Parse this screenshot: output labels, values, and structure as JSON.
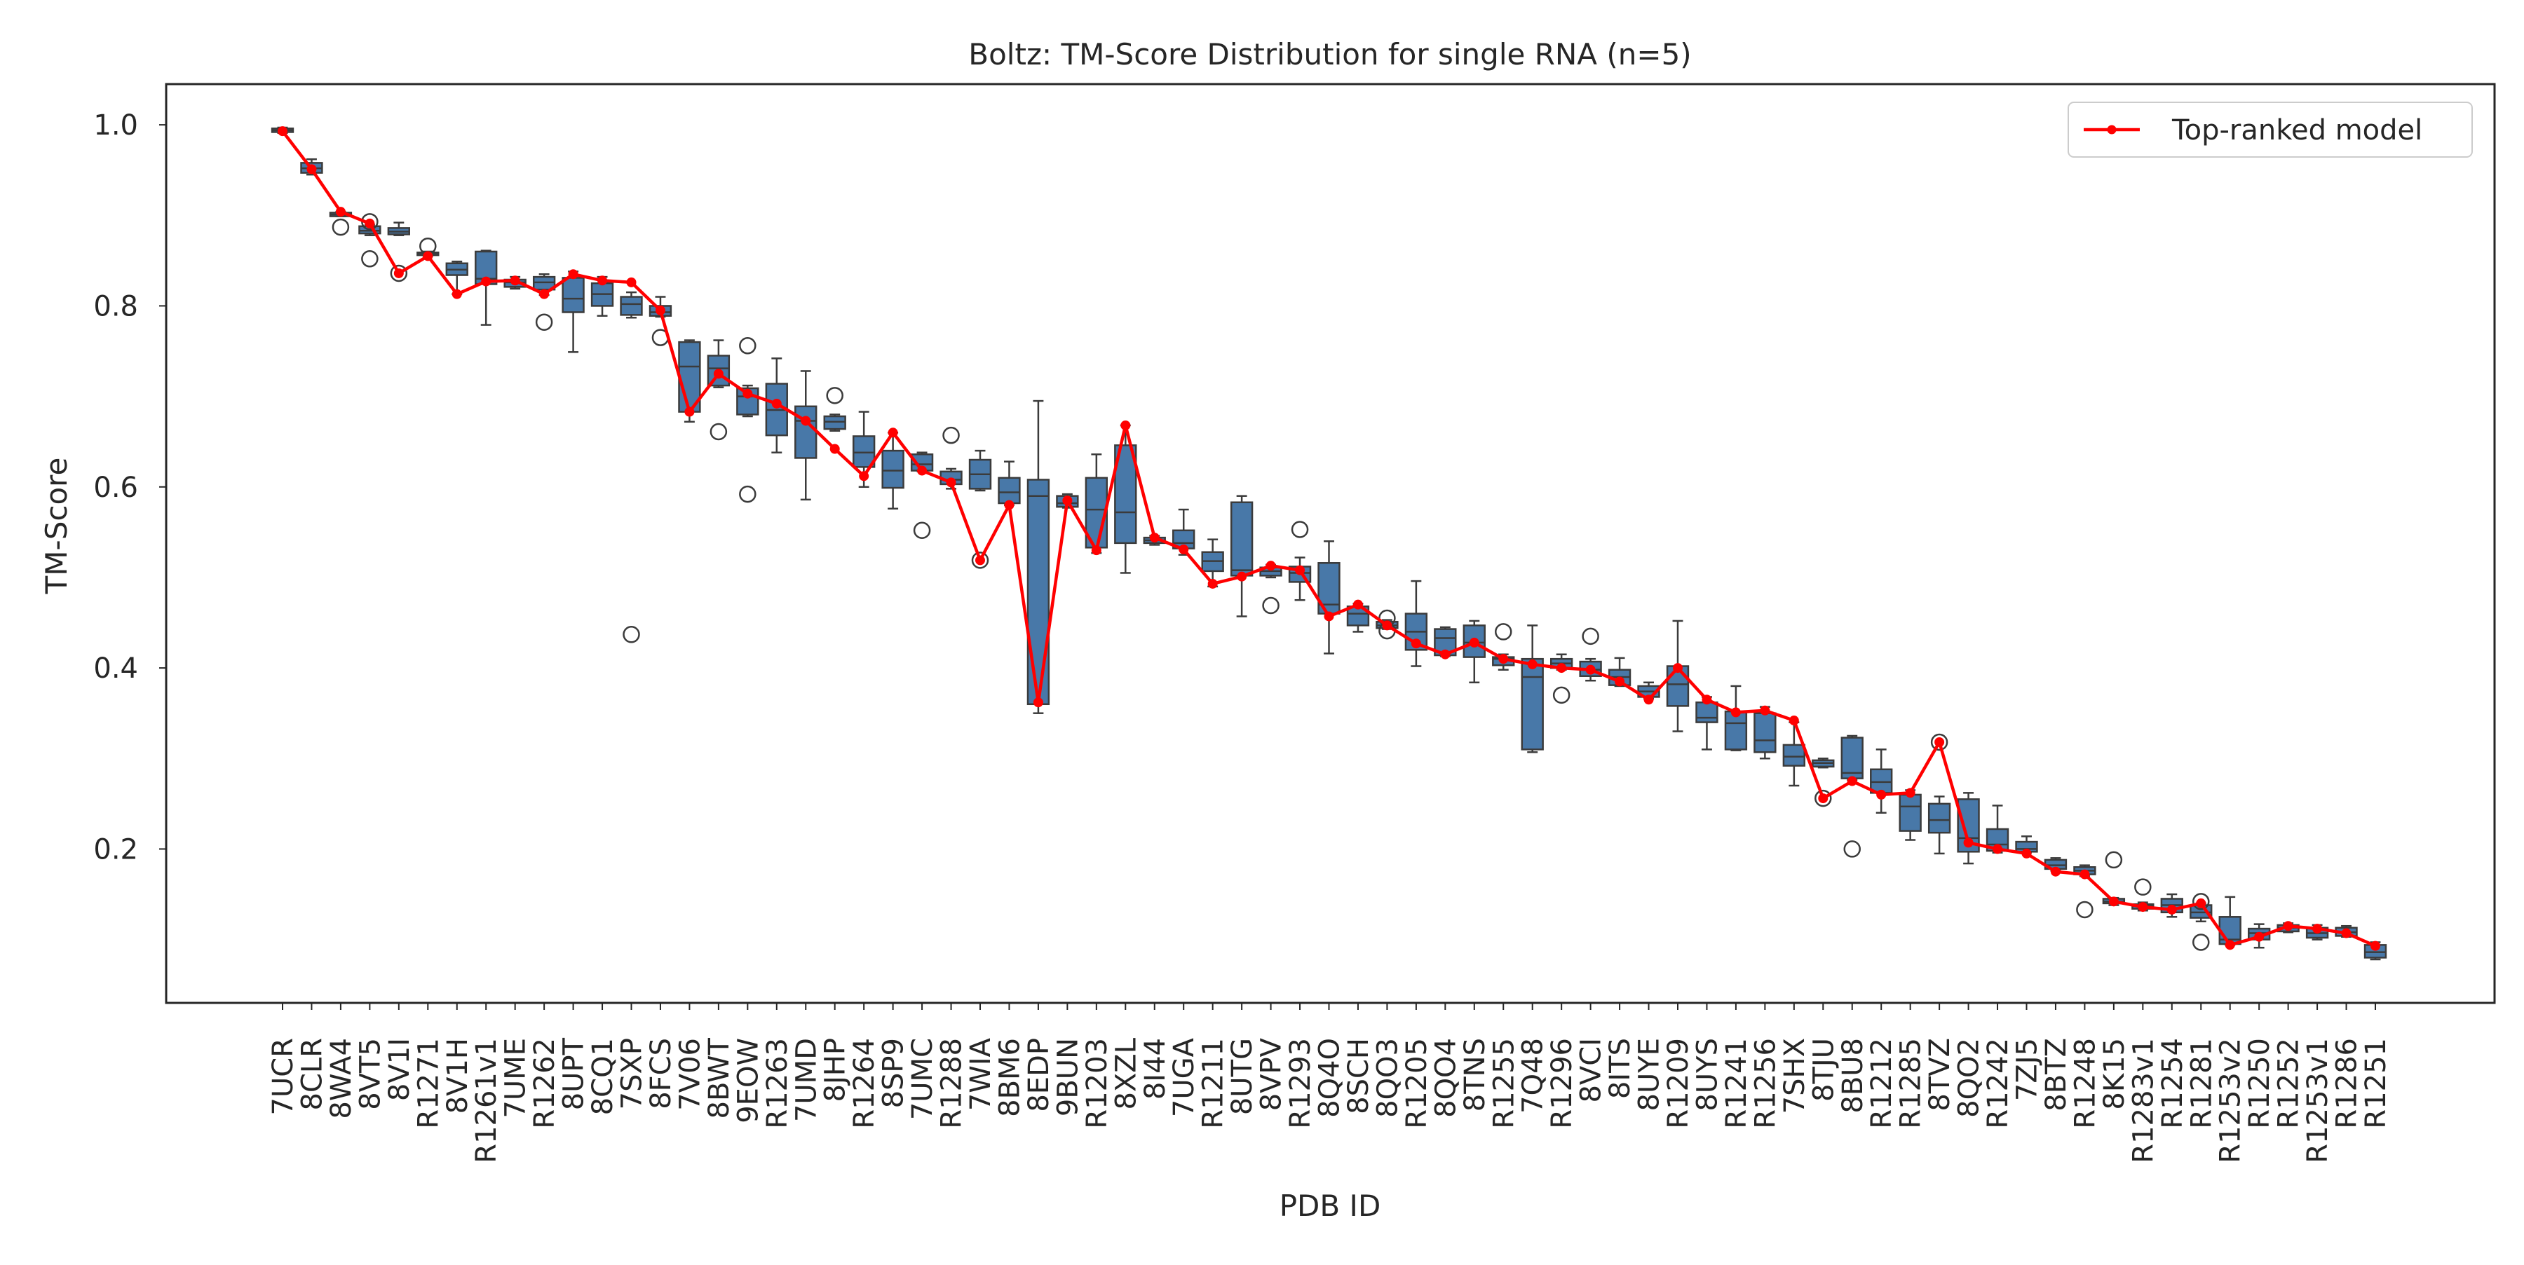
{
  "chart_data": {
    "type": "box",
    "title": "Boltz: TM-Score Distribution for single RNA (n=5)",
    "xlabel": "PDB ID",
    "ylabel": "TM-Score",
    "ylim": [
      0.03,
      1.045
    ],
    "yticks": [
      0.2,
      0.4,
      0.6,
      0.8,
      1.0
    ],
    "ytick_labels": [
      "0.2",
      "0.4",
      "0.6",
      "0.8",
      "1.0"
    ],
    "grid": false,
    "legend": {
      "position": "top-right",
      "entries": [
        "Top-ranked model"
      ]
    },
    "colors": {
      "box": "#4878a8",
      "box_edge": "#3b3b3b",
      "line": "#ff0000",
      "outlier_edge": "#3b3b3b"
    },
    "categories": [
      "7UCR",
      "8CLR",
      "8WA4",
      "8VT5",
      "8V1I",
      "R1271",
      "8V1H",
      "R1261v1",
      "7UME",
      "R1262",
      "8UPT",
      "8CQ1",
      "7SXP",
      "8FCS",
      "7V06",
      "8BWT",
      "9EOW",
      "R1263",
      "7UMD",
      "8JHP",
      "R1264",
      "8SP9",
      "7UMC",
      "R1288",
      "7WIA",
      "8BM6",
      "8EDP",
      "9BUN",
      "R1203",
      "8XZL",
      "8I44",
      "7UGA",
      "R1211",
      "8UTG",
      "8VPV",
      "R1293",
      "8Q4O",
      "8SCH",
      "8QO3",
      "R1205",
      "8QO4",
      "8TNS",
      "R1255",
      "7Q48",
      "R1296",
      "8VCI",
      "8ITS",
      "8UYE",
      "R1209",
      "8UYS",
      "R1241",
      "R1256",
      "7SHX",
      "8TJU",
      "8BU8",
      "R1212",
      "R1285",
      "8TVZ",
      "8QO2",
      "R1242",
      "7ZJ5",
      "8BTZ",
      "R1248",
      "8K15",
      "R1283v1",
      "R1254",
      "R1281",
      "R1253v2",
      "R1250",
      "R1252",
      "R1253v1",
      "R1286",
      "R1251"
    ],
    "boxes": [
      {
        "whislo": 0.991,
        "q1": 0.992,
        "med": 0.994,
        "q3": 0.996,
        "whishi": 0.997,
        "fliers": []
      },
      {
        "whislo": 0.945,
        "q1": 0.947,
        "med": 0.952,
        "q3": 0.958,
        "whishi": 0.962,
        "fliers": []
      },
      {
        "whislo": 0.899,
        "q1": 0.899,
        "med": 0.901,
        "q3": 0.903,
        "whishi": 0.904,
        "fliers": [
          0.887
        ]
      },
      {
        "whislo": 0.878,
        "q1": 0.88,
        "med": 0.883,
        "q3": 0.888,
        "whishi": 0.89,
        "fliers": [
          0.893,
          0.852
        ]
      },
      {
        "whislo": 0.878,
        "q1": 0.879,
        "med": 0.882,
        "q3": 0.886,
        "whishi": 0.892,
        "fliers": [
          0.836
        ]
      },
      {
        "whislo": 0.855,
        "q1": 0.856,
        "med": 0.858,
        "q3": 0.859,
        "whishi": 0.86,
        "fliers": [
          0.866
        ]
      },
      {
        "whislo": 0.813,
        "q1": 0.834,
        "med": 0.84,
        "q3": 0.847,
        "whishi": 0.849,
        "fliers": []
      },
      {
        "whislo": 0.779,
        "q1": 0.824,
        "med": 0.83,
        "q3": 0.86,
        "whishi": 0.861,
        "fliers": []
      },
      {
        "whislo": 0.819,
        "q1": 0.821,
        "med": 0.826,
        "q3": 0.829,
        "whishi": 0.832,
        "fliers": []
      },
      {
        "whislo": 0.812,
        "q1": 0.818,
        "med": 0.826,
        "q3": 0.832,
        "whishi": 0.835,
        "fliers": [
          0.782
        ]
      },
      {
        "whislo": 0.749,
        "q1": 0.793,
        "med": 0.808,
        "q3": 0.831,
        "whishi": 0.838,
        "fliers": []
      },
      {
        "whislo": 0.789,
        "q1": 0.8,
        "med": 0.813,
        "q3": 0.825,
        "whishi": 0.832,
        "fliers": []
      },
      {
        "whislo": 0.787,
        "q1": 0.79,
        "med": 0.802,
        "q3": 0.81,
        "whishi": 0.815,
        "fliers": [
          0.437
        ]
      },
      {
        "whislo": 0.788,
        "q1": 0.789,
        "med": 0.793,
        "q3": 0.8,
        "whishi": 0.81,
        "fliers": [
          0.765
        ]
      },
      {
        "whislo": 0.672,
        "q1": 0.683,
        "med": 0.733,
        "q3": 0.76,
        "whishi": 0.762,
        "fliers": []
      },
      {
        "whislo": 0.71,
        "q1": 0.712,
        "med": 0.731,
        "q3": 0.745,
        "whishi": 0.762,
        "fliers": [
          0.661
        ]
      },
      {
        "whislo": 0.678,
        "q1": 0.68,
        "med": 0.7,
        "q3": 0.709,
        "whishi": 0.712,
        "fliers": [
          0.756,
          0.592
        ]
      },
      {
        "whislo": 0.638,
        "q1": 0.657,
        "med": 0.685,
        "q3": 0.714,
        "whishi": 0.742,
        "fliers": []
      },
      {
        "whislo": 0.586,
        "q1": 0.632,
        "med": 0.673,
        "q3": 0.689,
        "whishi": 0.728,
        "fliers": []
      },
      {
        "whislo": 0.662,
        "q1": 0.664,
        "med": 0.672,
        "q3": 0.678,
        "whishi": 0.68,
        "fliers": [
          0.701
        ]
      },
      {
        "whislo": 0.6,
        "q1": 0.622,
        "med": 0.638,
        "q3": 0.656,
        "whishi": 0.683,
        "fliers": []
      },
      {
        "whislo": 0.576,
        "q1": 0.599,
        "med": 0.618,
        "q3": 0.64,
        "whishi": 0.66,
        "fliers": []
      },
      {
        "whislo": 0.617,
        "q1": 0.618,
        "med": 0.625,
        "q3": 0.636,
        "whishi": 0.638,
        "fliers": [
          0.552
        ]
      },
      {
        "whislo": 0.598,
        "q1": 0.603,
        "med": 0.608,
        "q3": 0.617,
        "whishi": 0.62,
        "fliers": [
          0.657
        ]
      },
      {
        "whislo": 0.596,
        "q1": 0.598,
        "med": 0.614,
        "q3": 0.63,
        "whishi": 0.64,
        "fliers": [
          0.519
        ]
      },
      {
        "whislo": 0.58,
        "q1": 0.582,
        "med": 0.594,
        "q3": 0.61,
        "whishi": 0.628,
        "fliers": []
      },
      {
        "whislo": 0.35,
        "q1": 0.36,
        "med": 0.59,
        "q3": 0.608,
        "whishi": 0.695,
        "fliers": []
      },
      {
        "whislo": 0.577,
        "q1": 0.578,
        "med": 0.582,
        "q3": 0.59,
        "whishi": 0.592,
        "fliers": []
      },
      {
        "whislo": 0.527,
        "q1": 0.533,
        "med": 0.575,
        "q3": 0.61,
        "whishi": 0.636,
        "fliers": []
      },
      {
        "whislo": 0.505,
        "q1": 0.538,
        "med": 0.572,
        "q3": 0.646,
        "whishi": 0.668,
        "fliers": []
      },
      {
        "whislo": 0.536,
        "q1": 0.538,
        "med": 0.541,
        "q3": 0.544,
        "whishi": 0.546,
        "fliers": []
      },
      {
        "whislo": 0.525,
        "q1": 0.532,
        "med": 0.538,
        "q3": 0.552,
        "whishi": 0.575,
        "fliers": []
      },
      {
        "whislo": 0.49,
        "q1": 0.507,
        "med": 0.518,
        "q3": 0.528,
        "whishi": 0.542,
        "fliers": []
      },
      {
        "whislo": 0.457,
        "q1": 0.502,
        "med": 0.508,
        "q3": 0.583,
        "whishi": 0.59,
        "fliers": []
      },
      {
        "whislo": 0.5,
        "q1": 0.502,
        "med": 0.507,
        "q3": 0.511,
        "whishi": 0.514,
        "fliers": [
          0.469
        ]
      },
      {
        "whislo": 0.475,
        "q1": 0.495,
        "med": 0.505,
        "q3": 0.512,
        "whishi": 0.522,
        "fliers": [
          0.553
        ]
      },
      {
        "whislo": 0.416,
        "q1": 0.46,
        "med": 0.47,
        "q3": 0.516,
        "whishi": 0.54,
        "fliers": []
      },
      {
        "whislo": 0.44,
        "q1": 0.447,
        "med": 0.46,
        "q3": 0.468,
        "whishi": 0.471,
        "fliers": []
      },
      {
        "whislo": 0.443,
        "q1": 0.444,
        "med": 0.447,
        "q3": 0.451,
        "whishi": 0.453,
        "fliers": [
          0.455,
          0.441
        ]
      },
      {
        "whislo": 0.402,
        "q1": 0.42,
        "med": 0.44,
        "q3": 0.46,
        "whishi": 0.496,
        "fliers": []
      },
      {
        "whislo": 0.413,
        "q1": 0.414,
        "med": 0.433,
        "q3": 0.443,
        "whishi": 0.445,
        "fliers": []
      },
      {
        "whislo": 0.384,
        "q1": 0.412,
        "med": 0.428,
        "q3": 0.447,
        "whishi": 0.452,
        "fliers": []
      },
      {
        "whislo": 0.398,
        "q1": 0.403,
        "med": 0.41,
        "q3": 0.412,
        "whishi": 0.415,
        "fliers": [
          0.44
        ]
      },
      {
        "whislo": 0.307,
        "q1": 0.31,
        "med": 0.39,
        "q3": 0.41,
        "whishi": 0.447,
        "fliers": []
      },
      {
        "whislo": 0.398,
        "q1": 0.4,
        "med": 0.405,
        "q3": 0.41,
        "whishi": 0.415,
        "fliers": [
          0.37
        ]
      },
      {
        "whislo": 0.386,
        "q1": 0.391,
        "med": 0.398,
        "q3": 0.407,
        "whishi": 0.41,
        "fliers": [
          0.435
        ]
      },
      {
        "whislo": 0.38,
        "q1": 0.381,
        "med": 0.39,
        "q3": 0.398,
        "whishi": 0.411,
        "fliers": []
      },
      {
        "whislo": 0.366,
        "q1": 0.368,
        "med": 0.374,
        "q3": 0.38,
        "whishi": 0.384,
        "fliers": []
      },
      {
        "whislo": 0.33,
        "q1": 0.358,
        "med": 0.382,
        "q3": 0.402,
        "whishi": 0.452,
        "fliers": []
      },
      {
        "whislo": 0.31,
        "q1": 0.34,
        "med": 0.345,
        "q3": 0.362,
        "whishi": 0.368,
        "fliers": []
      },
      {
        "whislo": 0.309,
        "q1": 0.31,
        "med": 0.339,
        "q3": 0.352,
        "whishi": 0.38,
        "fliers": []
      },
      {
        "whislo": 0.3,
        "q1": 0.307,
        "med": 0.32,
        "q3": 0.35,
        "whishi": 0.357,
        "fliers": []
      },
      {
        "whislo": 0.27,
        "q1": 0.292,
        "med": 0.302,
        "q3": 0.315,
        "whishi": 0.34,
        "fliers": []
      },
      {
        "whislo": 0.29,
        "q1": 0.291,
        "med": 0.295,
        "q3": 0.298,
        "whishi": 0.3,
        "fliers": [
          0.256
        ]
      },
      {
        "whislo": 0.276,
        "q1": 0.278,
        "med": 0.284,
        "q3": 0.323,
        "whishi": 0.325,
        "fliers": [
          0.2
        ]
      },
      {
        "whislo": 0.24,
        "q1": 0.262,
        "med": 0.274,
        "q3": 0.288,
        "whishi": 0.31,
        "fliers": []
      },
      {
        "whislo": 0.21,
        "q1": 0.22,
        "med": 0.247,
        "q3": 0.26,
        "whishi": 0.265,
        "fliers": []
      },
      {
        "whislo": 0.195,
        "q1": 0.218,
        "med": 0.232,
        "q3": 0.25,
        "whishi": 0.258,
        "fliers": [
          0.318
        ]
      },
      {
        "whislo": 0.184,
        "q1": 0.197,
        "med": 0.212,
        "q3": 0.255,
        "whishi": 0.262,
        "fliers": []
      },
      {
        "whislo": 0.196,
        "q1": 0.198,
        "med": 0.205,
        "q3": 0.222,
        "whishi": 0.248,
        "fliers": []
      },
      {
        "whislo": 0.196,
        "q1": 0.197,
        "med": 0.2,
        "q3": 0.208,
        "whishi": 0.214,
        "fliers": []
      },
      {
        "whislo": 0.176,
        "q1": 0.178,
        "med": 0.182,
        "q3": 0.188,
        "whishi": 0.19,
        "fliers": []
      },
      {
        "whislo": 0.17,
        "q1": 0.172,
        "med": 0.176,
        "q3": 0.18,
        "whishi": 0.182,
        "fliers": [
          0.133
        ]
      },
      {
        "whislo": 0.138,
        "q1": 0.14,
        "med": 0.142,
        "q3": 0.145,
        "whishi": 0.146,
        "fliers": [
          0.188
        ]
      },
      {
        "whislo": 0.132,
        "q1": 0.134,
        "med": 0.137,
        "q3": 0.139,
        "whishi": 0.141,
        "fliers": [
          0.158
        ]
      },
      {
        "whislo": 0.125,
        "q1": 0.13,
        "med": 0.138,
        "q3": 0.145,
        "whishi": 0.15,
        "fliers": []
      },
      {
        "whislo": 0.12,
        "q1": 0.124,
        "med": 0.13,
        "q3": 0.138,
        "whishi": 0.14,
        "fliers": [
          0.097,
          0.142
        ]
      },
      {
        "whislo": 0.094,
        "q1": 0.095,
        "med": 0.1,
        "q3": 0.125,
        "whishi": 0.147,
        "fliers": []
      },
      {
        "whislo": 0.091,
        "q1": 0.1,
        "med": 0.107,
        "q3": 0.112,
        "whishi": 0.117,
        "fliers": []
      },
      {
        "whislo": 0.108,
        "q1": 0.109,
        "med": 0.113,
        "q3": 0.116,
        "whishi": 0.118,
        "fliers": []
      },
      {
        "whislo": 0.1,
        "q1": 0.102,
        "med": 0.107,
        "q3": 0.113,
        "whishi": 0.116,
        "fliers": []
      },
      {
        "whislo": 0.103,
        "q1": 0.104,
        "med": 0.108,
        "q3": 0.113,
        "whishi": 0.115,
        "fliers": []
      },
      {
        "whislo": 0.078,
        "q1": 0.08,
        "med": 0.086,
        "q3": 0.094,
        "whishi": 0.097,
        "fliers": []
      }
    ],
    "series": [
      {
        "name": "Top-ranked model",
        "values": [
          0.993,
          0.951,
          0.904,
          0.891,
          0.836,
          0.855,
          0.813,
          0.827,
          0.828,
          0.813,
          0.835,
          0.828,
          0.826,
          0.795,
          0.683,
          0.725,
          0.703,
          0.692,
          0.673,
          0.642,
          0.612,
          0.66,
          0.618,
          0.605,
          0.519,
          0.58,
          0.362,
          0.585,
          0.53,
          0.668,
          0.544,
          0.531,
          0.493,
          0.501,
          0.513,
          0.508,
          0.457,
          0.47,
          0.447,
          0.427,
          0.415,
          0.428,
          0.41,
          0.404,
          0.4,
          0.398,
          0.385,
          0.365,
          0.4,
          0.365,
          0.351,
          0.353,
          0.342,
          0.256,
          0.275,
          0.26,
          0.262,
          0.318,
          0.207,
          0.2,
          0.195,
          0.175,
          0.172,
          0.142,
          0.136,
          0.133,
          0.14,
          0.094,
          0.103,
          0.115,
          0.112,
          0.107,
          0.093
        ]
      }
    ]
  }
}
